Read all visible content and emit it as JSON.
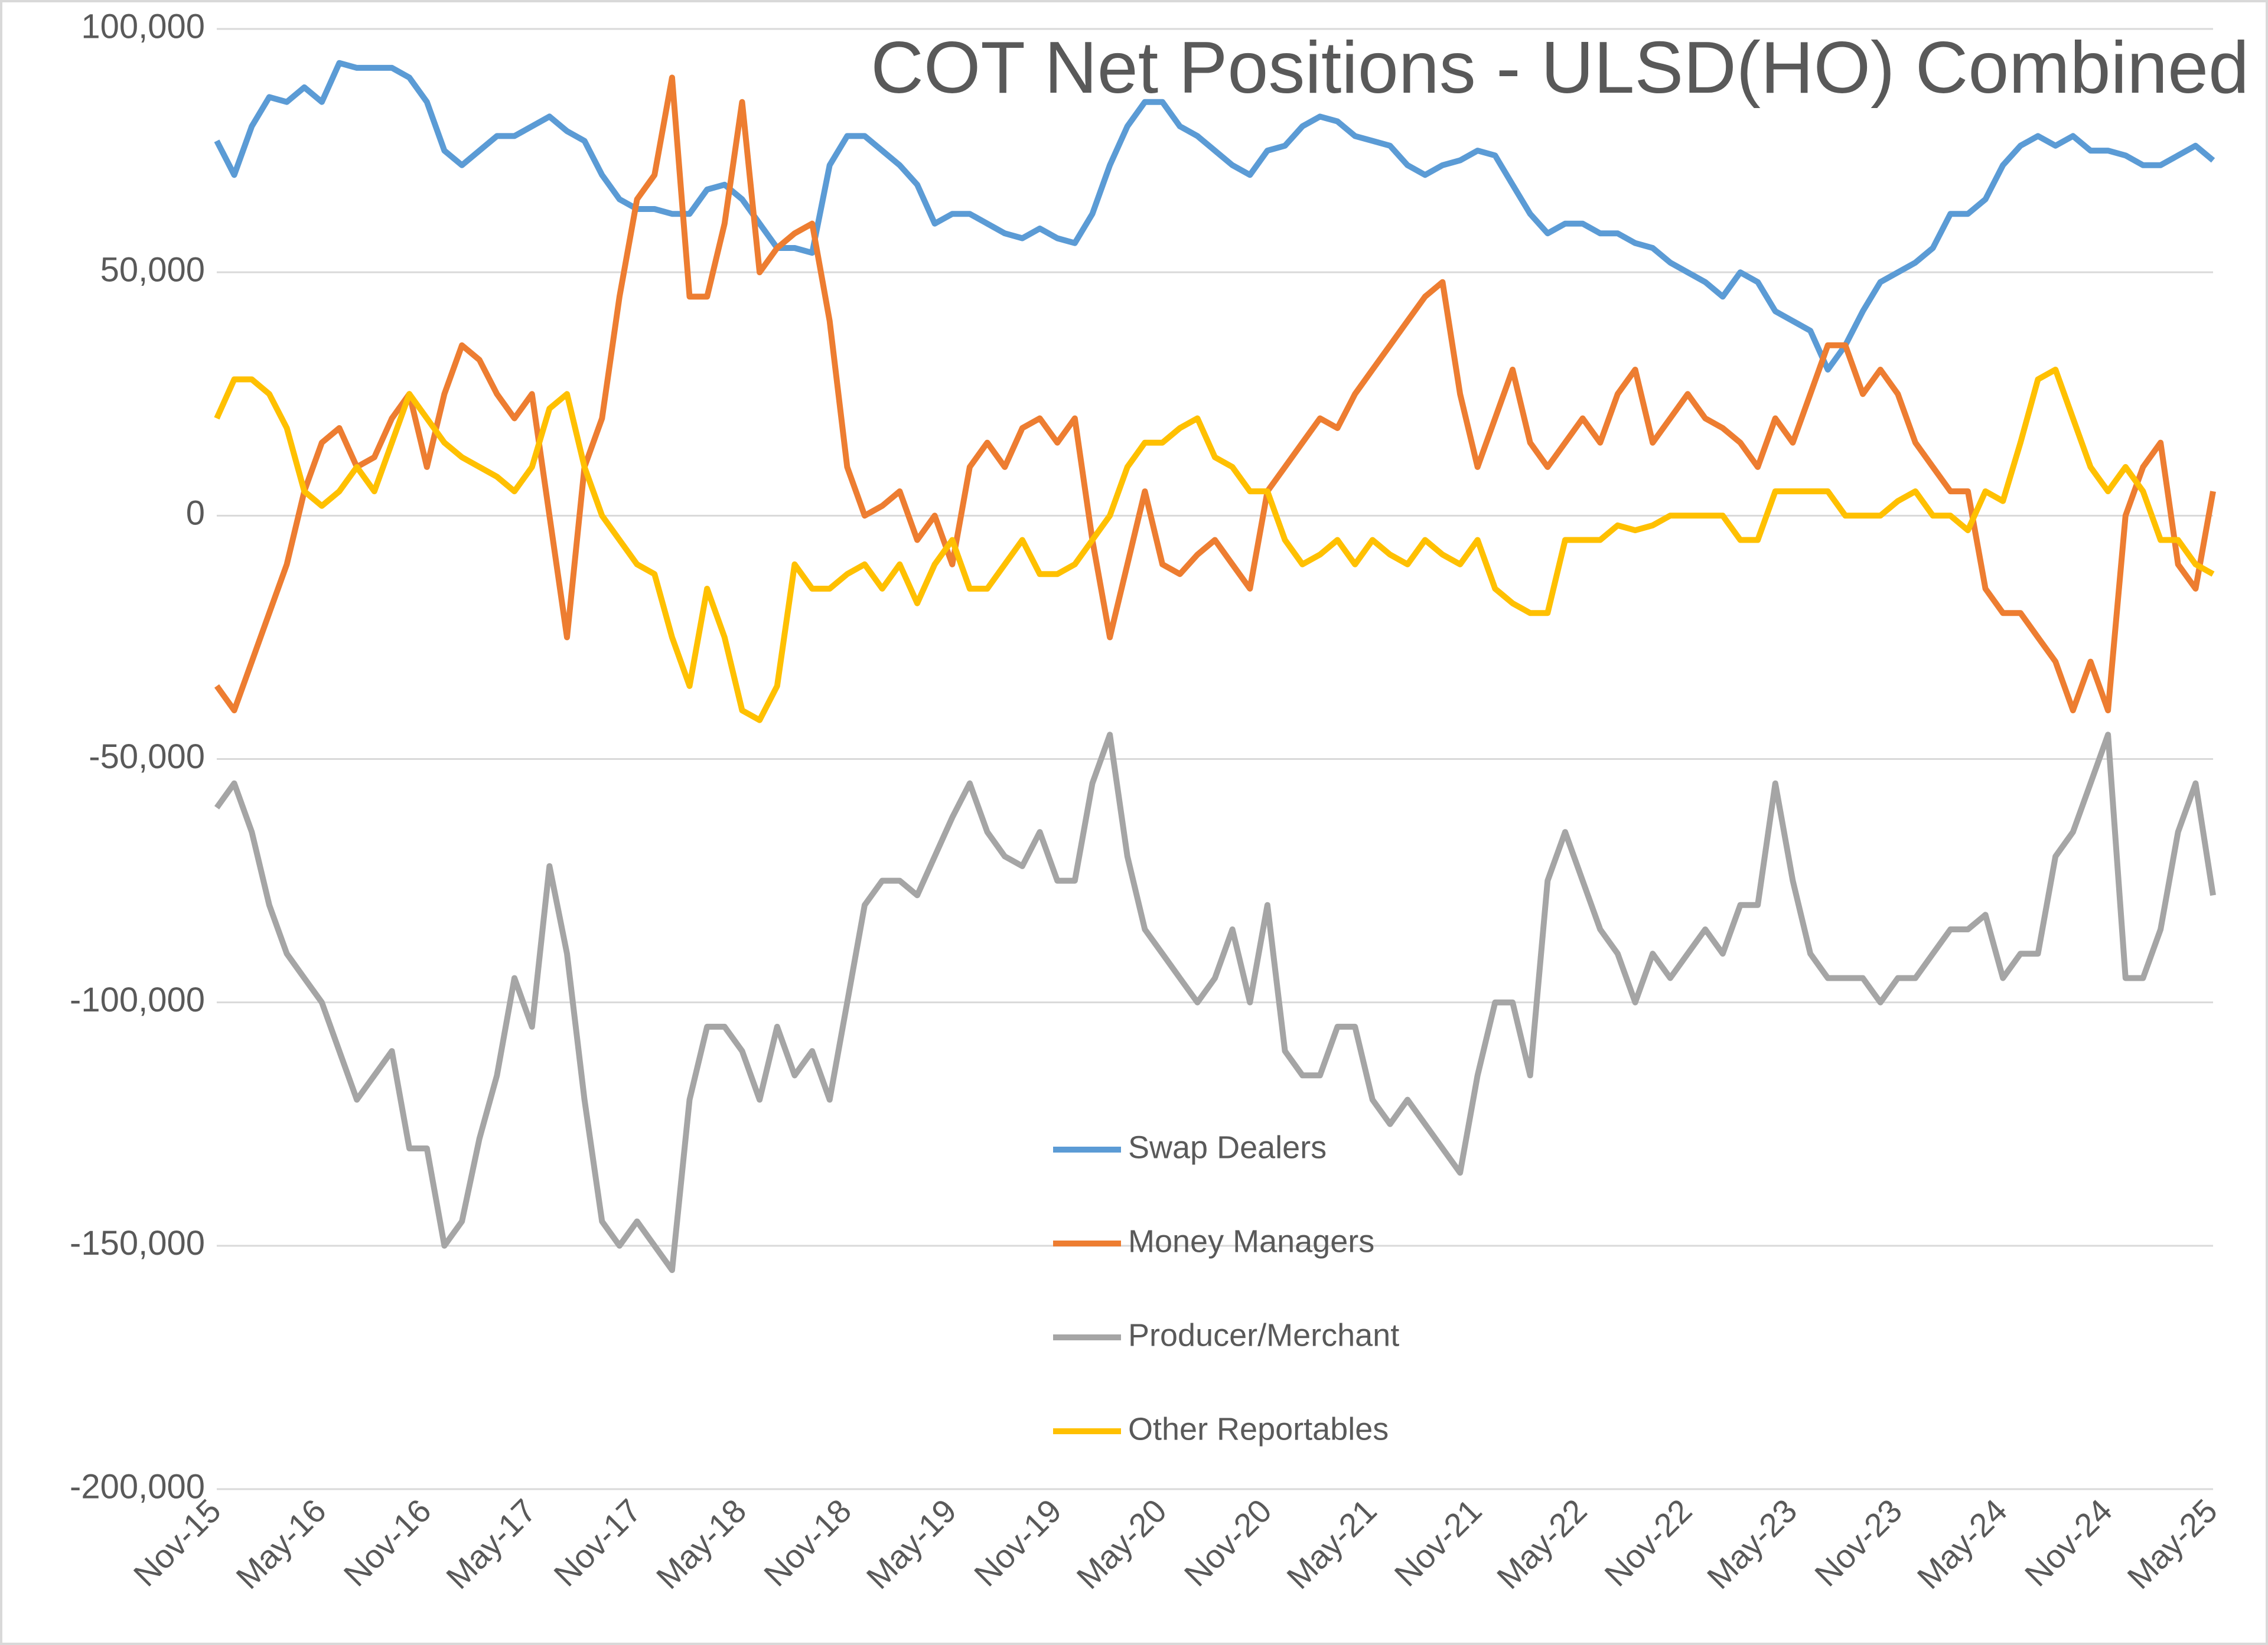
{
  "chart_data": {
    "type": "line",
    "title": "COT Net Positions - ULSD(HO) Combined",
    "categories": [
      "Nov-15",
      null,
      null,
      null,
      null,
      null,
      "May-16",
      null,
      null,
      null,
      null,
      null,
      "Nov-16",
      null,
      null,
      null,
      null,
      null,
      "May-17",
      null,
      null,
      null,
      null,
      null,
      "Nov-17",
      null,
      null,
      null,
      null,
      null,
      "May-18",
      null,
      null,
      null,
      null,
      null,
      "Nov-18",
      null,
      null,
      null,
      null,
      null,
      "May-19",
      null,
      null,
      null,
      null,
      null,
      "Nov-19",
      null,
      null,
      null,
      null,
      null,
      "May-20",
      null,
      null,
      null,
      null,
      null,
      "Nov-20",
      null,
      null,
      null,
      null,
      null,
      "May-21",
      null,
      null,
      null,
      null,
      null,
      "Nov-21",
      null,
      null,
      null,
      null,
      null,
      "May-22",
      null,
      null,
      null,
      null,
      null,
      "Nov-22",
      null,
      null,
      null,
      null,
      null,
      "May-23",
      null,
      null,
      null,
      null,
      null,
      "Nov-23",
      null,
      null,
      null,
      null,
      null,
      "May-24",
      null,
      null,
      null,
      null,
      null,
      "Nov-24",
      null,
      null,
      null,
      null,
      null,
      "May-25"
    ],
    "series": [
      {
        "name": "Swap Dealers",
        "color": "#5b9bd5",
        "values": [
          77000,
          70000,
          80000,
          86000,
          85000,
          88000,
          85000,
          93000,
          92000,
          92000,
          92000,
          90000,
          85000,
          75000,
          72000,
          75000,
          78000,
          78000,
          80000,
          82000,
          79000,
          77000,
          70000,
          65000,
          63000,
          63000,
          62000,
          62000,
          67000,
          68000,
          65000,
          60000,
          55000,
          55000,
          54000,
          72000,
          78000,
          78000,
          75000,
          72000,
          68000,
          60000,
          62000,
          62000,
          60000,
          58000,
          57000,
          59000,
          57000,
          56000,
          62000,
          72000,
          80000,
          85000,
          85000,
          80000,
          78000,
          75000,
          72000,
          70000,
          75000,
          76000,
          80000,
          82000,
          81000,
          78000,
          77000,
          76000,
          72000,
          70000,
          72000,
          73000,
          75000,
          74000,
          68000,
          62000,
          58000,
          60000,
          60000,
          58000,
          58000,
          56000,
          55000,
          52000,
          50000,
          48000,
          45000,
          50000,
          48000,
          42000,
          40000,
          38000,
          30000,
          35000,
          42000,
          48000,
          50000,
          52000,
          55000,
          62000,
          62000,
          65000,
          72000,
          76000,
          78000,
          76000,
          78000,
          75000,
          75000,
          74000,
          72000,
          72000,
          74000,
          76000,
          73000
        ]
      },
      {
        "name": "Money Managers",
        "color": "#ed7d31",
        "values": [
          -35000,
          -40000,
          -30000,
          -20000,
          -10000,
          5000,
          15000,
          18000,
          10000,
          12000,
          20000,
          25000,
          10000,
          25000,
          35000,
          32000,
          25000,
          20000,
          25000,
          0,
          -25000,
          10000,
          20000,
          45000,
          65000,
          70000,
          90000,
          45000,
          45000,
          60000,
          85000,
          50000,
          55000,
          58000,
          60000,
          40000,
          10000,
          0,
          2000,
          5000,
          -5000,
          0,
          -10000,
          10000,
          15000,
          10000,
          18000,
          20000,
          15000,
          20000,
          -5000,
          -25000,
          -10000,
          5000,
          -10000,
          -12000,
          -8000,
          -5000,
          -10000,
          -15000,
          5000,
          10000,
          15000,
          20000,
          18000,
          25000,
          30000,
          35000,
          40000,
          45000,
          48000,
          25000,
          10000,
          20000,
          30000,
          15000,
          10000,
          15000,
          20000,
          15000,
          25000,
          30000,
          15000,
          20000,
          25000,
          20000,
          18000,
          15000,
          10000,
          20000,
          15000,
          25000,
          35000,
          35000,
          25000,
          30000,
          25000,
          15000,
          10000,
          5000,
          5000,
          -15000,
          -20000,
          -20000,
          -25000,
          -30000,
          -40000,
          -30000,
          -40000,
          0,
          10000,
          15000,
          -10000,
          -15000,
          5000
        ]
      },
      {
        "name": "Producer/Merchant",
        "color": "#a5a5a5",
        "values": [
          -60000,
          -55000,
          -65000,
          -80000,
          -90000,
          -95000,
          -100000,
          -110000,
          -120000,
          -115000,
          -110000,
          -130000,
          -130000,
          -150000,
          -145000,
          -128000,
          -115000,
          -95000,
          -105000,
          -72000,
          -90000,
          -120000,
          -145000,
          -150000,
          -145000,
          -150000,
          -155000,
          -120000,
          -105000,
          -105000,
          -110000,
          -120000,
          -105000,
          -115000,
          -110000,
          -120000,
          -100000,
          -80000,
          -75000,
          -75000,
          -78000,
          -70000,
          -62000,
          -55000,
          -65000,
          -70000,
          -72000,
          -65000,
          -75000,
          -75000,
          -55000,
          -45000,
          -70000,
          -85000,
          -90000,
          -95000,
          -100000,
          -95000,
          -85000,
          -100000,
          -80000,
          -110000,
          -115000,
          -115000,
          -105000,
          -105000,
          -120000,
          -125000,
          -120000,
          -125000,
          -130000,
          -135000,
          -115000,
          -100000,
          -100000,
          -115000,
          -75000,
          -65000,
          -75000,
          -85000,
          -90000,
          -100000,
          -90000,
          -95000,
          -90000,
          -85000,
          -90000,
          -80000,
          -80000,
          -55000,
          -75000,
          -90000,
          -95000,
          -95000,
          -95000,
          -100000,
          -95000,
          -95000,
          -90000,
          -85000,
          -85000,
          -82000,
          -95000,
          -90000,
          -90000,
          -70000,
          -65000,
          -55000,
          -45000,
          -95000,
          -95000,
          -85000,
          -65000,
          -55000,
          -78000
        ]
      },
      {
        "name": "Other Reportables",
        "color": "#ffc000",
        "values": [
          20000,
          28000,
          28000,
          25000,
          18000,
          5000,
          2000,
          5000,
          10000,
          5000,
          15000,
          25000,
          20000,
          15000,
          12000,
          10000,
          8000,
          5000,
          10000,
          22000,
          25000,
          10000,
          0,
          -5000,
          -10000,
          -12000,
          -25000,
          -35000,
          -15000,
          -25000,
          -40000,
          -42000,
          -35000,
          -10000,
          -15000,
          -15000,
          -12000,
          -10000,
          -15000,
          -10000,
          -18000,
          -10000,
          -5000,
          -15000,
          -15000,
          -10000,
          -5000,
          -12000,
          -12000,
          -10000,
          -5000,
          0,
          10000,
          15000,
          15000,
          18000,
          20000,
          12000,
          10000,
          5000,
          5000,
          -5000,
          -10000,
          -8000,
          -5000,
          -10000,
          -5000,
          -8000,
          -10000,
          -5000,
          -8000,
          -10000,
          -5000,
          -15000,
          -18000,
          -20000,
          -20000,
          -5000,
          -5000,
          -5000,
          -2000,
          -3000,
          -2000,
          0,
          0,
          0,
          0,
          -5000,
          -5000,
          5000,
          5000,
          5000,
          5000,
          0,
          0,
          0,
          3000,
          5000,
          0,
          0,
          -3000,
          5000,
          3000,
          15000,
          28000,
          30000,
          20000,
          10000,
          5000,
          10000,
          5000,
          -5000,
          -5000,
          -10000,
          -12000
        ]
      }
    ],
    "ylim": [
      -200000,
      100000
    ],
    "yticks": [
      {
        "value": -200000,
        "label": "-200,000"
      },
      {
        "value": -150000,
        "label": "-150,000"
      },
      {
        "value": -100000,
        "label": "-100,000"
      },
      {
        "value": -50000,
        "label": "-50,000"
      },
      0,
      {
        "value": 50000,
        "label": "50,000"
      },
      {
        "value": 100000,
        "label": "100,000"
      }
    ],
    "grid": true
  }
}
